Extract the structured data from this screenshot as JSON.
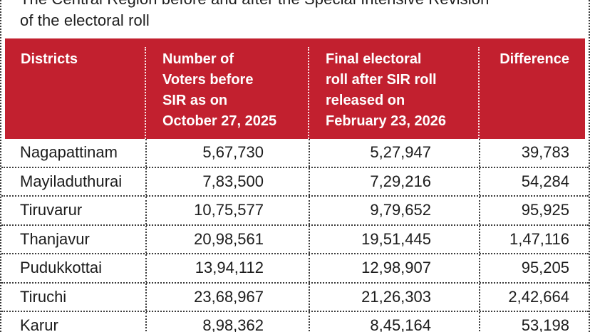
{
  "title": {
    "line1": "The Central Region before and after the Special Intensive Revision",
    "line2": "of the electoral roll"
  },
  "colors": {
    "header_bg": "#c2202f",
    "header_text": "#ffffff",
    "body_text": "#1c1c1c",
    "dotted_line": "#3c3c3c"
  },
  "table": {
    "columns": [
      {
        "lines": [
          "Districts"
        ]
      },
      {
        "lines": [
          "Number of",
          "Voters before",
          "SIR as on",
          "October 27, 2025"
        ]
      },
      {
        "lines": [
          "Final electoral",
          "roll after SIR roll",
          "released on",
          "February 23, 2026"
        ]
      },
      {
        "lines": [
          "Difference"
        ]
      }
    ],
    "rows": [
      {
        "district": "Nagapattinam",
        "before": "5,67,730",
        "after": "5,27,947",
        "difference": "39,783"
      },
      {
        "district": "Mayiladuthurai",
        "before": "7,83,500",
        "after": "7,29,216",
        "difference": "54,284"
      },
      {
        "district": "Tiruvarur",
        "before": "10,75,577",
        "after": "9,79,652",
        "difference": "95,925"
      },
      {
        "district": "Thanjavur",
        "before": "20,98,561",
        "after": "19,51,445",
        "difference": "1,47,116"
      },
      {
        "district": "Pudukkottai",
        "before": "13,94,112",
        "after": "12,98,907",
        "difference": "95,205"
      },
      {
        "district": "Tiruchi",
        "before": "23,68,967",
        "after": "21,26,303",
        "difference": "2,42,664"
      },
      {
        "district": "Karur",
        "before": "8,98,362",
        "after": "8,45,164",
        "difference": "53,198"
      }
    ]
  },
  "chart_data": {
    "type": "table",
    "title": "The Central Region before and after the Special Intensive Revision of the electoral roll",
    "columns": [
      "Districts",
      "Number of Voters before SIR as on October 27, 2025",
      "Final electoral roll after SIR roll released on February 23, 2026",
      "Difference"
    ],
    "rows": [
      [
        "Nagapattinam",
        "5,67,730",
        "5,27,947",
        "39,783"
      ],
      [
        "Mayiladuthurai",
        "7,83,500",
        "7,29,216",
        "54,284"
      ],
      [
        "Tiruvarur",
        "10,75,577",
        "9,79,652",
        "95,925"
      ],
      [
        "Thanjavur",
        "20,98,561",
        "19,51,445",
        "1,47,116"
      ],
      [
        "Pudukkottai",
        "13,94,112",
        "12,98,907",
        "95,205"
      ],
      [
        "Tiruchi",
        "23,68,967",
        "21,26,303",
        "2,42,664"
      ],
      [
        "Karur",
        "8,98,362",
        "8,45,164",
        "53,198"
      ]
    ]
  }
}
